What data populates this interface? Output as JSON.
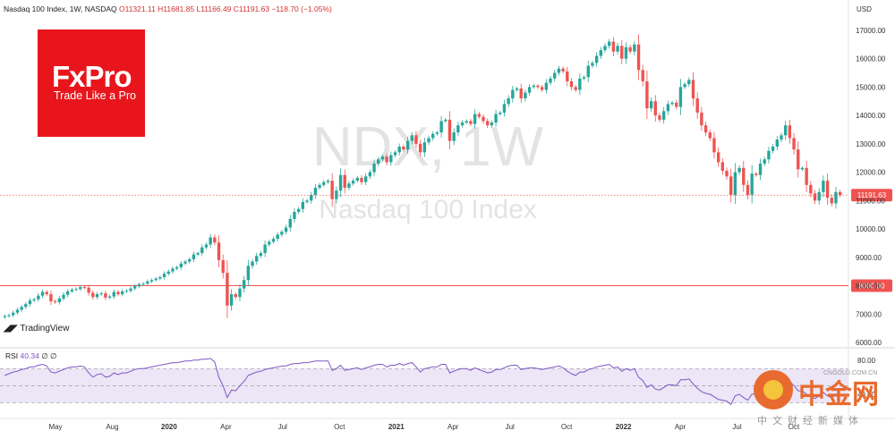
{
  "header": {
    "symbol": "Nasdaq 100 Index, 1W, NASDAQ",
    "ohlc": "O11321.11  H11681.85  L11166.49  C11191.63  −118.70 (−1.05%)"
  },
  "logo": {
    "brand": "FxPro",
    "tagline": "Trade Like a Pro"
  },
  "watermark": {
    "ticker": "NDX, 1W",
    "name": "Nasdaq 100 Index"
  },
  "tradingview_label": "TradingView",
  "rsi_legend": {
    "label": "RSI",
    "value": "40.34",
    "extras": "∅ ∅"
  },
  "cngold": {
    "big": "中金网",
    "sub": "中文财经新媒体",
    "url": "CNGOLD.COM.CN"
  },
  "colors": {
    "up": "#26a69a",
    "down": "#ef5350",
    "rsi": "#7e57c2",
    "rsi_band": "#ece6f7",
    "support": "#ef5350"
  },
  "chart_data": {
    "type": "candlestick",
    "y_unit": "USD",
    "ylim": [
      6000,
      17500
    ],
    "y_ticks": [
      6000,
      7000,
      8000,
      9000,
      10000,
      11000,
      12000,
      13000,
      14000,
      15000,
      16000,
      17000
    ],
    "y_tick_labels": [
      "6000.00",
      "7000.00",
      "8000.00",
      "9000.00",
      "10000.00",
      "11000.00",
      "12000.00",
      "13000.00",
      "14000.00",
      "15000.00",
      "16000.00",
      "17000.00"
    ],
    "x_ticks": [
      {
        "label": "May",
        "bold": false
      },
      {
        "label": "Aug",
        "bold": false
      },
      {
        "label": "2020",
        "bold": true
      },
      {
        "label": "Apr",
        "bold": false
      },
      {
        "label": "Jul",
        "bold": false
      },
      {
        "label": "Oct",
        "bold": false
      },
      {
        "label": "2021",
        "bold": true
      },
      {
        "label": "Apr",
        "bold": false
      },
      {
        "label": "Jul",
        "bold": false
      },
      {
        "label": "Oct",
        "bold": false
      },
      {
        "label": "2022",
        "bold": true
      },
      {
        "label": "Apr",
        "bold": false
      },
      {
        "label": "Jul",
        "bold": false
      },
      {
        "label": "Oct",
        "bold": false
      }
    ],
    "price_marker": {
      "value": 11191.63,
      "label": "11191.63"
    },
    "support": {
      "value": 8000,
      "label": "8000.00"
    },
    "closes": [
      6930,
      6960,
      7050,
      7150,
      7250,
      7350,
      7480,
      7520,
      7650,
      7780,
      7700,
      7450,
      7420,
      7550,
      7680,
      7800,
      7860,
      7880,
      7950,
      7930,
      7750,
      7600,
      7700,
      7730,
      7580,
      7620,
      7780,
      7700,
      7800,
      7820,
      7900,
      7980,
      8050,
      8070,
      8150,
      8200,
      8250,
      8300,
      8420,
      8500,
      8600,
      8650,
      8780,
      8850,
      8930,
      9100,
      9150,
      9350,
      9450,
      9700,
      9520,
      8900,
      8450,
      7300,
      7700,
      7600,
      7900,
      8200,
      8700,
      8850,
      9050,
      9150,
      9450,
      9550,
      9650,
      9800,
      9900,
      10050,
      10350,
      10600,
      10700,
      10950,
      11000,
      11200,
      11450,
      11550,
      11650,
      11700,
      11050,
      11350,
      11900,
      11450,
      11600,
      11700,
      11800,
      11650,
      11850,
      12000,
      12300,
      12450,
      12550,
      12350,
      12600,
      12700,
      12900,
      12800,
      13100,
      13300,
      13000,
      12700,
      13050,
      13200,
      13350,
      13400,
      13800,
      13850,
      13100,
      13400,
      13650,
      13750,
      13800,
      13700,
      14050,
      13950,
      13800,
      13650,
      13750,
      14050,
      14100,
      14400,
      14600,
      14900,
      14950,
      14600,
      14800,
      15000,
      15050,
      15000,
      14900,
      15150,
      15300,
      15500,
      15650,
      15550,
      15200,
      15000,
      14900,
      15300,
      15350,
      15750,
      15850,
      16100,
      16300,
      16450,
      16600,
      16250,
      16450,
      16000,
      16400,
      16250,
      16500,
      15600,
      15200,
      14250,
      14500,
      14000,
      13850,
      14150,
      14400,
      14450,
      14300,
      15000,
      15100,
      15250,
      14600,
      14100,
      13650,
      13400,
      13200,
      12700,
      12350,
      12050,
      11850,
      11200,
      12000,
      12150,
      11550,
      11200,
      11950,
      11900,
      12300,
      12450,
      12750,
      12900,
      13150,
      13300,
      13650,
      13200,
      12800,
      12100,
      12150,
      11550,
      11250,
      11000,
      11300,
      11700,
      11100,
      10900,
      11300,
      11191.63
    ],
    "rsi": {
      "ylim": [
        20,
        85
      ],
      "ticks": [
        80,
        40
      ],
      "tick_labels": [
        "80.00",
        "40.00"
      ],
      "band": [
        30,
        70
      ],
      "values": [
        62,
        64,
        66,
        67,
        69,
        70,
        72,
        72,
        74,
        75,
        73,
        66,
        65,
        67,
        69,
        71,
        72,
        72,
        73,
        72,
        65,
        60,
        63,
        64,
        60,
        61,
        65,
        63,
        65,
        65,
        67,
        69,
        70,
        70,
        71,
        72,
        73,
        74,
        75,
        76,
        77,
        77,
        78,
        79,
        79,
        80,
        80,
        81,
        81,
        82,
        78,
        60,
        50,
        36,
        45,
        44,
        50,
        55,
        62,
        64,
        66,
        67,
        69,
        70,
        71,
        72,
        73,
        73,
        75,
        76,
        76,
        77,
        77,
        78,
        79,
        79,
        79,
        79,
        68,
        70,
        74,
        68,
        69,
        70,
        71,
        69,
        71,
        72,
        74,
        75,
        75,
        72,
        74,
        74,
        76,
        74,
        76,
        77,
        72,
        66,
        70,
        71,
        72,
        72,
        75,
        75,
        65,
        67,
        69,
        70,
        70,
        68,
        71,
        69,
        67,
        65,
        66,
        69,
        69,
        71,
        73,
        74,
        74,
        69,
        70,
        71,
        71,
        70,
        69,
        70,
        71,
        72,
        73,
        71,
        67,
        64,
        62,
        66,
        66,
        69,
        70,
        72,
        73,
        74,
        75,
        71,
        72,
        67,
        70,
        68,
        70,
        60,
        56,
        48,
        51,
        46,
        45,
        48,
        51,
        51,
        50,
        57,
        57,
        58,
        52,
        47,
        43,
        41,
        40,
        37,
        34,
        33,
        32,
        28,
        38,
        40,
        36,
        33,
        40,
        40,
        44,
        46,
        49,
        51,
        54,
        56,
        59,
        55,
        50,
        44,
        44,
        40,
        37,
        35,
        38,
        42,
        38,
        36,
        40,
        40.34
      ]
    }
  }
}
